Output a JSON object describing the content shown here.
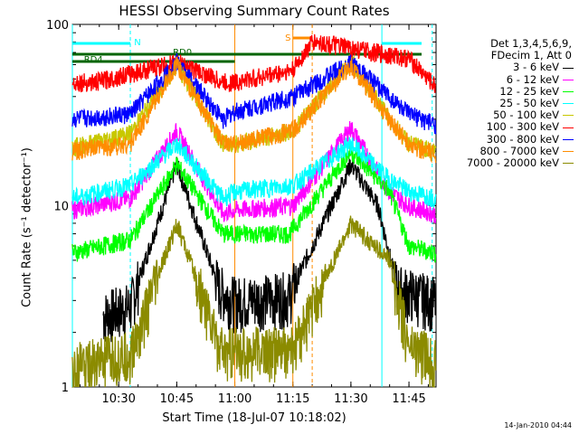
{
  "chart_data": {
    "type": "line",
    "title": "HESSI Observing Summary Count Rates",
    "xlabel": "Start Time (18-Jul-07 10:18:02)",
    "ylabel": "Count Rate (s⁻¹ detector⁻¹)",
    "yscale": "log",
    "ylim": [
      1,
      100
    ],
    "xlim": [
      "10:18:02",
      "11:52:00"
    ],
    "x_tick_labels": [
      "10:30",
      "10:45",
      "11:00",
      "11:15",
      "11:30",
      "11:45"
    ],
    "y_tick_labels": [
      "1",
      "10",
      "100"
    ],
    "legend_header": [
      "Det 1,3,4,5,6,9,",
      "FDecim 1, Att 0"
    ],
    "series": [
      {
        "name": "3 - 6 keV",
        "color": "#000000",
        "points": [
          [
            "10:26",
            2.5
          ],
          [
            "10:33",
            2.8
          ],
          [
            "10:45",
            17
          ],
          [
            "10:56",
            3.5
          ],
          [
            "11:00",
            3.0
          ],
          [
            "11:14",
            3.2
          ],
          [
            "11:30",
            17
          ],
          [
            "11:37",
            10
          ],
          [
            "11:42",
            3.5
          ],
          [
            "11:52",
            3.0
          ]
        ]
      },
      {
        "name": "6 - 12 keV",
        "color": "#ff00ff",
        "points": [
          [
            "10:18",
            9.5
          ],
          [
            "10:33",
            11
          ],
          [
            "10:45",
            26
          ],
          [
            "10:57",
            9
          ],
          [
            "11:00",
            9.5
          ],
          [
            "11:15",
            10
          ],
          [
            "11:30",
            27
          ],
          [
            "11:40",
            12
          ],
          [
            "11:45",
            10
          ],
          [
            "11:52",
            9
          ]
        ]
      },
      {
        "name": "12 - 25 keV",
        "color": "#00ff00",
        "points": [
          [
            "10:18",
            5.5
          ],
          [
            "10:33",
            6.5
          ],
          [
            "10:45",
            17
          ],
          [
            "10:57",
            7
          ],
          [
            "11:00",
            7
          ],
          [
            "11:14",
            7
          ],
          [
            "11:30",
            20
          ],
          [
            "11:40",
            12
          ],
          [
            "11:45",
            6
          ],
          [
            "11:52",
            5.5
          ]
        ]
      },
      {
        "name": "25 - 50 keV",
        "color": "#00ffff",
        "points": [
          [
            "10:18",
            11
          ],
          [
            "10:33",
            13
          ],
          [
            "10:45",
            22
          ],
          [
            "10:57",
            11
          ],
          [
            "11:00",
            12
          ],
          [
            "11:15",
            13
          ],
          [
            "11:30",
            22
          ],
          [
            "11:40",
            14
          ],
          [
            "11:45",
            12
          ],
          [
            "11:52",
            11
          ]
        ]
      },
      {
        "name": "50 - 100 keV",
        "color": "#c8c800",
        "points": [
          [
            "10:18",
            21
          ],
          [
            "10:33",
            25
          ],
          [
            "10:45",
            60
          ],
          [
            "10:57",
            22
          ],
          [
            "11:00",
            22
          ],
          [
            "11:15",
            26
          ],
          [
            "11:30",
            63
          ],
          [
            "11:40",
            30
          ],
          [
            "11:45",
            22
          ],
          [
            "11:52",
            20
          ]
        ]
      },
      {
        "name": "100 - 300 keV",
        "color": "#ff0000",
        "points": [
          [
            "10:18",
            48
          ],
          [
            "10:23",
            48
          ],
          [
            "10:24",
            48
          ],
          [
            "10:45",
            62
          ],
          [
            "10:57",
            48
          ],
          [
            "11:00",
            48
          ],
          [
            "11:15",
            56
          ],
          [
            "11:20",
            80
          ],
          [
            "11:21",
            80
          ],
          [
            "11:45",
            65
          ],
          [
            "11:52",
            45
          ]
        ]
      },
      {
        "name": "300 - 800 keV",
        "color": "#0000ff",
        "points": [
          [
            "10:18",
            30
          ],
          [
            "10:33",
            32
          ],
          [
            "10:45",
            62
          ],
          [
            "10:57",
            30
          ],
          [
            "11:00",
            33
          ],
          [
            "11:15",
            40
          ],
          [
            "11:30",
            62
          ],
          [
            "11:40",
            40
          ],
          [
            "11:45",
            32
          ],
          [
            "11:52",
            28
          ]
        ]
      },
      {
        "name": "800 - 7000 keV",
        "color": "#ff8c00",
        "points": [
          [
            "10:18",
            20
          ],
          [
            "10:33",
            22
          ],
          [
            "10:45",
            60
          ],
          [
            "10:57",
            22
          ],
          [
            "11:00",
            22
          ],
          [
            "11:15",
            26
          ],
          [
            "11:30",
            60
          ],
          [
            "11:40",
            30
          ],
          [
            "11:45",
            22
          ],
          [
            "11:52",
            19
          ]
        ]
      },
      {
        "name": "7000 - 20000 keV",
        "color": "#8b8b00",
        "points": [
          [
            "10:18",
            1.3
          ],
          [
            "10:33",
            1.5
          ],
          [
            "10:45",
            8
          ],
          [
            "10:57",
            1.5
          ],
          [
            "11:00",
            1.6
          ],
          [
            "11:15",
            1.6
          ],
          [
            "11:30",
            8
          ],
          [
            "11:40",
            5
          ],
          [
            "11:45",
            1.7
          ],
          [
            "11:52",
            1.4
          ]
        ]
      }
    ],
    "annotations": [
      {
        "text": "N",
        "color": "#00ffff"
      },
      {
        "text": "RD0",
        "color": "#006400"
      },
      {
        "text": "RD4",
        "color": "#006400"
      },
      {
        "text": "S",
        "color": "#ff8c00"
      }
    ]
  },
  "footer": "14-Jan-2010 04:44"
}
